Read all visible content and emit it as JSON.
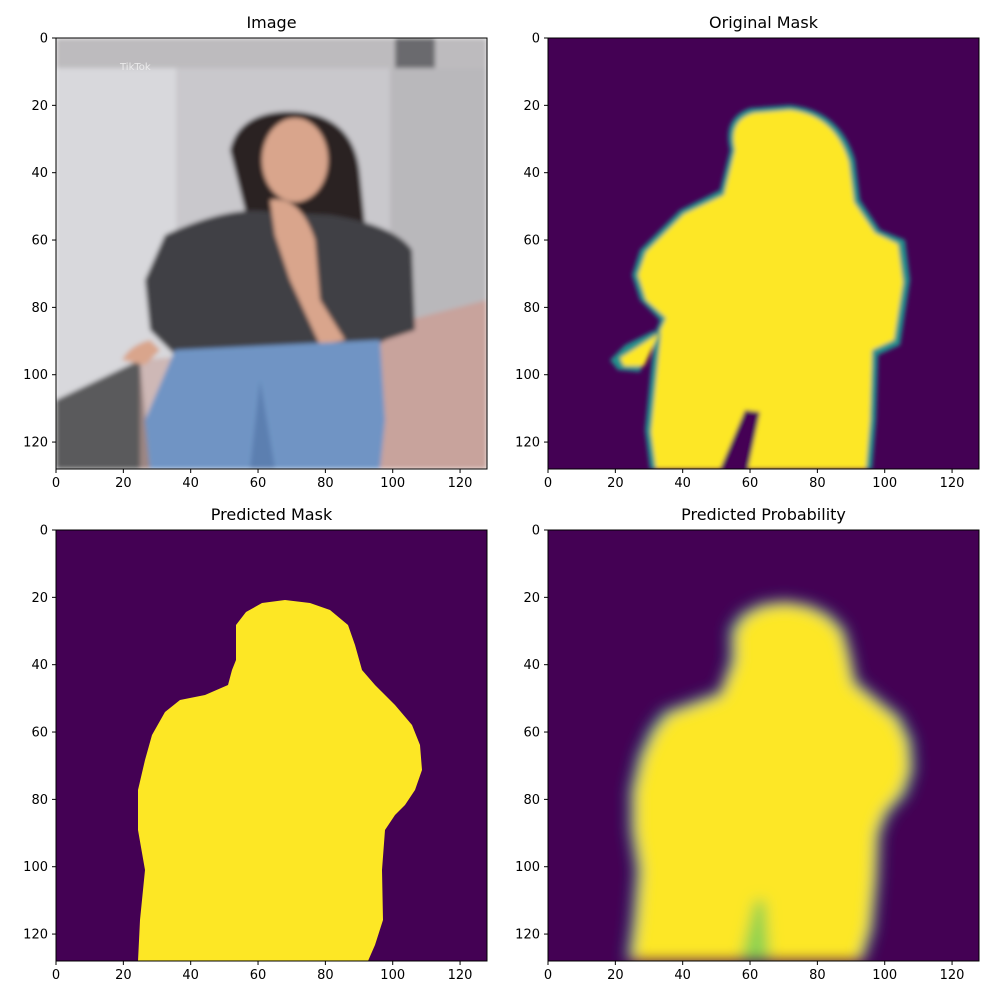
{
  "figure": {
    "panels": [
      {
        "id": "image",
        "title": "Image",
        "kind": "photo"
      },
      {
        "id": "original-mask",
        "title": "Original Mask",
        "kind": "mask-soft"
      },
      {
        "id": "predicted-mask",
        "title": "Predicted Mask",
        "kind": "mask-binary"
      },
      {
        "id": "predicted-probability",
        "title": "Predicted Probability",
        "kind": "mask-prob"
      }
    ],
    "axis": {
      "xlim": [
        0,
        128
      ],
      "ylim": [
        128,
        0
      ],
      "x_ticks": [
        0,
        20,
        40,
        60,
        80,
        100,
        120
      ],
      "y_ticks": [
        0,
        20,
        40,
        60,
        80,
        100,
        120
      ]
    },
    "colors": {
      "background_mask": "#440154",
      "foreground_mask": "#fde725",
      "edge_mid": "#21918c",
      "edge_light": "#5ec962",
      "photo_wall": "#c9c8cc",
      "photo_floor": "#c8a39c",
      "photo_shirt": "#3f3f44",
      "photo_jeans": "#6f94c4",
      "photo_skin": "#d9a58c",
      "photo_hair": "#2b2020"
    },
    "photo_watermark": "TikTok"
  }
}
